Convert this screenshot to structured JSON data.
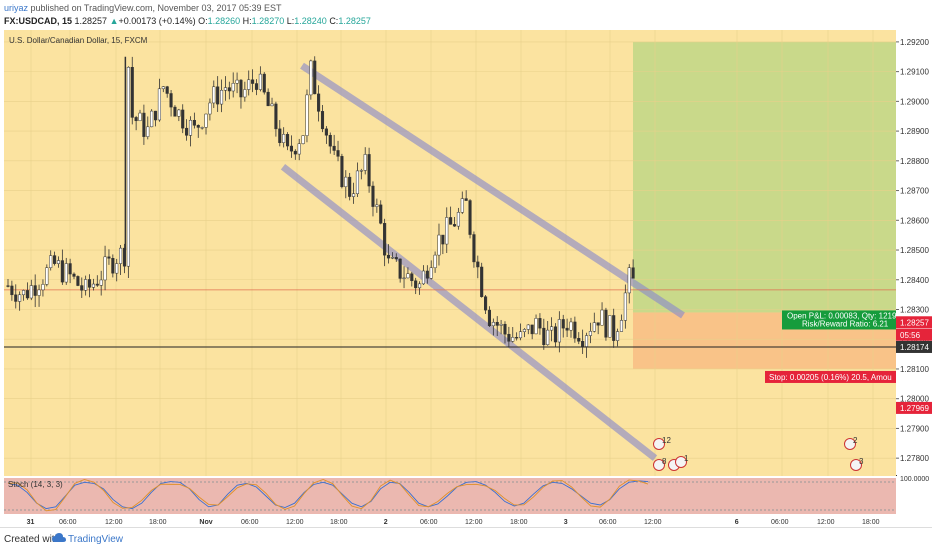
{
  "header": {
    "author": "uriyaz",
    "published_text": "published on TradingView.com, November 03, 2017 05:39 EST",
    "symbol_line": "FX:USDCAD, 15",
    "last": "1.28257",
    "change_arrow": "▲",
    "change": "+0.00173 (+0.14%)",
    "o_label": "O:",
    "o_value": "1.28260",
    "h_label": "H:",
    "h_value": "1.28270",
    "l_label": "L:",
    "l_value": "1.28240",
    "c_label": "C:",
    "c_value": "1.28257"
  },
  "chart_title": "U.S. Dollar/Canadian Dollar, 15, FXCM",
  "footer": {
    "created_with": "Created with",
    "brand": "TradingView"
  },
  "colors": {
    "background": "#fbe3a0",
    "target_zone": "#c9d98a",
    "profit_zone": "#f9c388",
    "channel": "#8e8ec8",
    "candle": "#333333",
    "stoch_band": "#ebb8b0",
    "price_label_red": "#e5243a",
    "price_label_dark": "#333333",
    "info_green": "#169c3c"
  },
  "chart_data": {
    "type": "candlestick",
    "symbol": "USDCAD",
    "timeframe": "15",
    "y_ticks": [
      1.292,
      1.291,
      1.29,
      1.289,
      1.288,
      1.287,
      1.286,
      1.285,
      1.284,
      1.283,
      1.282,
      1.281,
      1.28,
      1.279,
      1.278
    ],
    "y_tick_labels": [
      "1.29200",
      "1.29100",
      "1.29000",
      "1.28900",
      "1.28800",
      "1.28700",
      "1.28600",
      "1.28500",
      "1.28400",
      "1.28300",
      "1.28200",
      "1.28100",
      "1.28000",
      "1.27900",
      "1.27800"
    ],
    "ylim": [
      1.2774,
      1.2924
    ],
    "x_tick_labels": [
      "31",
      "06:00",
      "12:00",
      "18:00",
      "Nov",
      "06:00",
      "12:00",
      "18:00",
      "2",
      "06:00",
      "12:00",
      "18:00",
      "3",
      "06:00",
      "12:00",
      "6",
      "06:00",
      "12:00",
      "18:00"
    ],
    "price_path": [
      [
        0,
        1.2838
      ],
      [
        4,
        1.2835
      ],
      [
        8,
        1.284
      ],
      [
        12,
        1.2845
      ],
      [
        16,
        1.2841
      ],
      [
        20,
        1.2836
      ],
      [
        24,
        1.2842
      ],
      [
        28,
        1.2848
      ],
      [
        30,
        1.2849
      ],
      [
        31,
        1.2912
      ],
      [
        32,
        1.2895
      ],
      [
        36,
        1.289
      ],
      [
        40,
        1.2905
      ],
      [
        44,
        1.2896
      ],
      [
        48,
        1.289
      ],
      [
        52,
        1.29
      ],
      [
        56,
        1.2905
      ],
      [
        60,
        1.2902
      ],
      [
        64,
        1.2908
      ],
      [
        68,
        1.2895
      ],
      [
        72,
        1.2882
      ],
      [
        76,
        1.289
      ],
      [
        78,
        1.291
      ],
      [
        80,
        1.29
      ],
      [
        84,
        1.288
      ],
      [
        88,
        1.287
      ],
      [
        92,
        1.2878
      ],
      [
        96,
        1.2858
      ],
      [
        98,
        1.2845
      ],
      [
        102,
        1.2842
      ],
      [
        106,
        1.2838
      ],
      [
        110,
        1.2852
      ],
      [
        114,
        1.2858
      ],
      [
        118,
        1.2865
      ],
      [
        120,
        1.285
      ],
      [
        122,
        1.2838
      ],
      [
        124,
        1.2828
      ],
      [
        128,
        1.2822
      ],
      [
        132,
        1.282
      ],
      [
        136,
        1.2825
      ],
      [
        140,
        1.282
      ],
      [
        144,
        1.2826
      ],
      [
        148,
        1.2822
      ],
      [
        152,
        1.2828
      ],
      [
        156,
        1.2822
      ],
      [
        158,
        1.283
      ],
      [
        160,
        1.284
      ],
      [
        162,
        1.2838
      ]
    ],
    "channel_upper": [
      [
        1.2912,
        1.2828
      ]
    ],
    "channel_lower": [
      [
        1.2878,
        1.278
      ]
    ],
    "horizontal_lines": [
      {
        "value": 1.28366,
        "style": "thin-red"
      },
      {
        "value": 1.28174,
        "style": "black"
      }
    ],
    "position": {
      "entry": 1.2829,
      "stop": 1.281,
      "target": 1.292,
      "open_pnl_label": "Open P&L: 0.00083, Qty: 1219",
      "rr_label": "Risk/Reward Ratio: 6.21",
      "stop_label": "Stop: 0.00205 (0.16%) 20.5, Amou"
    },
    "price_labels": [
      {
        "value": 1.28257,
        "text": "1.28257",
        "color": "red"
      },
      {
        "value": 1.28215,
        "text": "05:56",
        "color": "red"
      },
      {
        "value": 1.28174,
        "text": "1.28174",
        "color": "dark"
      },
      {
        "value": 1.27969,
        "text": "1.27969",
        "color": "red"
      }
    ],
    "events": [
      {
        "text": "12"
      },
      {
        "text": "8"
      },
      {
        "text": "2"
      },
      {
        "text": "1"
      },
      {
        "text": "2"
      },
      {
        "text": "3"
      }
    ],
    "stoch": {
      "label": "Stoch (14, 3, 3)",
      "levels": [
        80,
        20
      ],
      "y_tick_label": "100.0000",
      "k": [
        85,
        80,
        60,
        30,
        15,
        20,
        50,
        80,
        88,
        85,
        70,
        40,
        20,
        15,
        30,
        60,
        85,
        90,
        88,
        70,
        40,
        20,
        25,
        55,
        80,
        85,
        75,
        50,
        25,
        18,
        30,
        60,
        82,
        88,
        80,
        55,
        30,
        20,
        35,
        70,
        88,
        85,
        60,
        30,
        20,
        28,
        50,
        75,
        88,
        90,
        80,
        60,
        35,
        22,
        30,
        55,
        78,
        88,
        85,
        70,
        50,
        30,
        25,
        40,
        70,
        88,
        92,
        90
      ]
    }
  }
}
